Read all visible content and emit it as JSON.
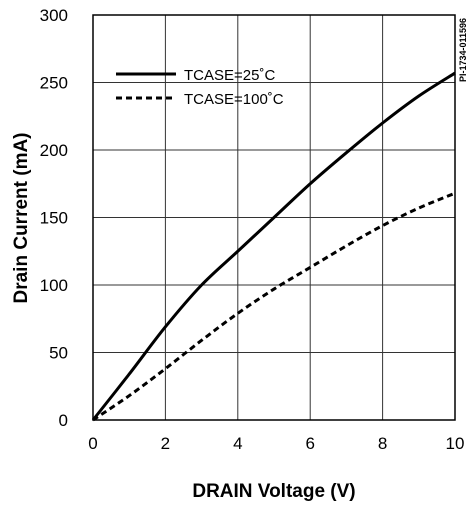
{
  "chart_data": {
    "type": "line",
    "title": "",
    "xlabel": "DRAIN Voltage (V)",
    "ylabel": "Drain Current (mA)",
    "xlim": [
      0,
      10
    ],
    "ylim": [
      0,
      300
    ],
    "x_ticks": [
      "0",
      "2",
      "4",
      "6",
      "8",
      "10"
    ],
    "y_ticks": [
      "0",
      "50",
      "100",
      "150",
      "200",
      "250",
      "300"
    ],
    "grid": true,
    "legend_position": "top-left",
    "side_code": "PI-1734-011596",
    "series": [
      {
        "name": "TCASE=25˚C",
        "style": "solid",
        "color": "#000000",
        "x": [
          0,
          1,
          2,
          3,
          4,
          5,
          6,
          7,
          8,
          9,
          10
        ],
        "y": [
          0,
          34,
          69,
          100,
          125,
          150,
          175,
          198,
          220,
          240,
          257
        ]
      },
      {
        "name": "TCASE=100˚C",
        "style": "dashed",
        "color": "#000000",
        "x": [
          0,
          1,
          2,
          3,
          4,
          5,
          6,
          7,
          8,
          9,
          10
        ],
        "y": [
          0,
          18,
          38,
          59,
          79,
          97,
          113,
          129,
          144,
          157,
          168
        ]
      }
    ]
  }
}
